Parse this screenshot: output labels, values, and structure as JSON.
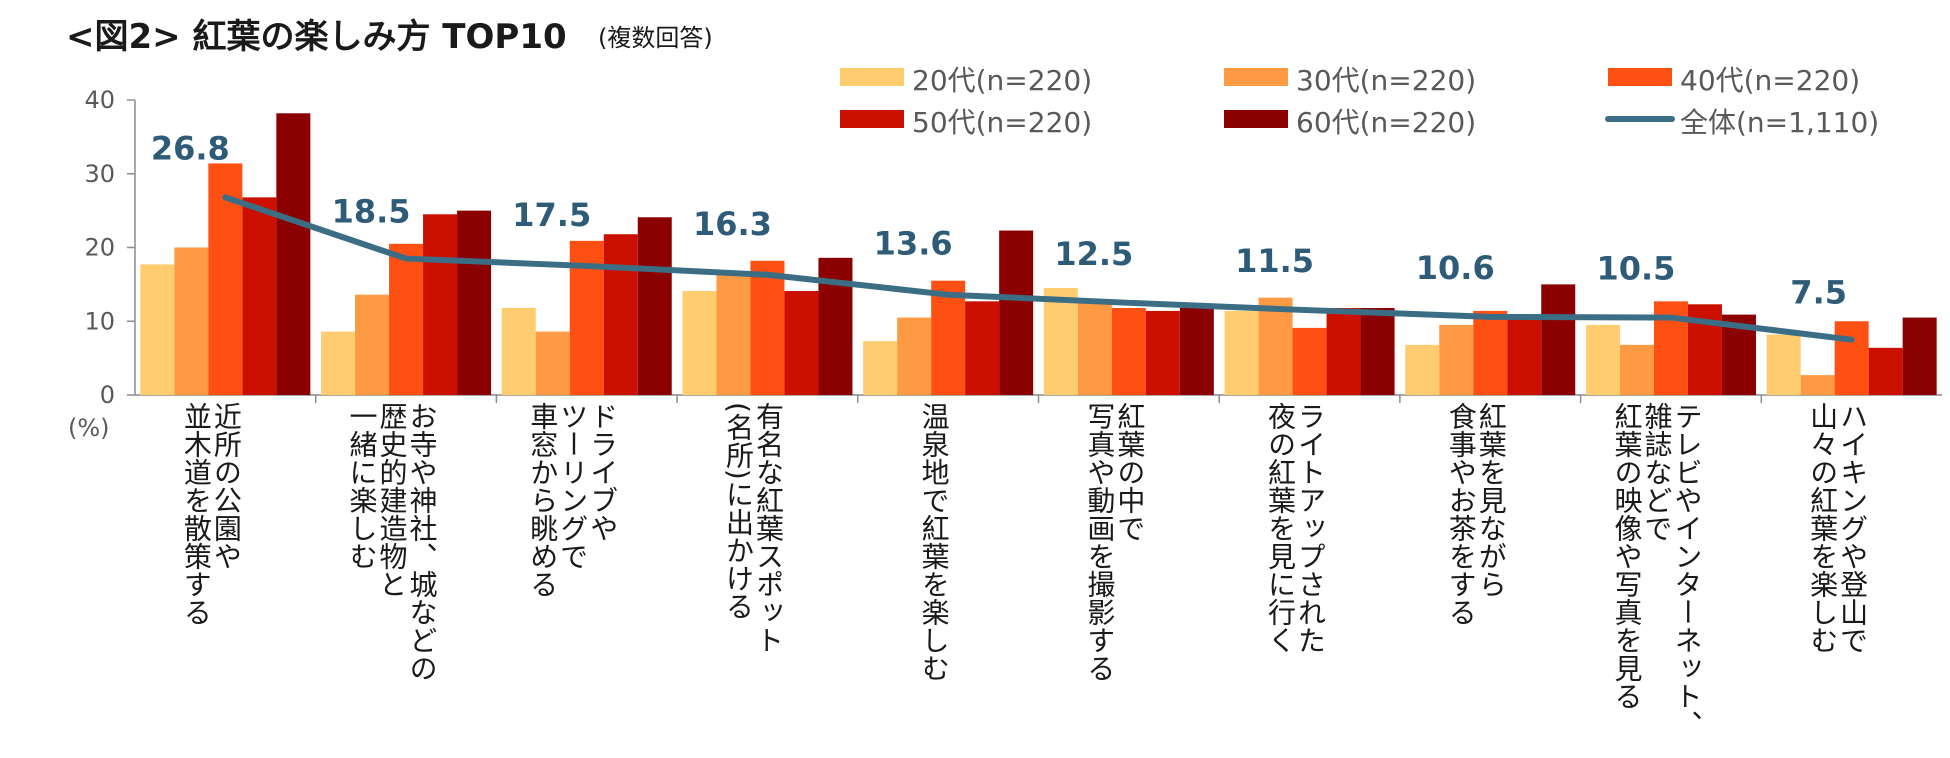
{
  "chart_data": {
    "type": "bar",
    "title": "<図2> 紅葉の楽しみ方 TOP10",
    "subtitle": "(複数回答)",
    "ylabel": "(%)",
    "ylim": [
      0,
      40
    ],
    "yticks": [
      "0",
      "10",
      "20",
      "30",
      "40"
    ],
    "legend_position": "top-right",
    "categories": [
      [
        "近所の公園や",
        "並木道を散策する"
      ],
      [
        "お寺や神社、城などの",
        "歴史的建造物と",
        "一緒に楽しむ"
      ],
      [
        "ドライブや",
        "ツーリングで",
        "車窓から眺める"
      ],
      [
        "有名な紅葉スポット",
        "(名所)に出かける"
      ],
      [
        "温泉地で紅葉を楽しむ"
      ],
      [
        "紅葉の中で",
        "写真や動画を撮影する"
      ],
      [
        "ライトアップされた",
        "夜の紅葉を見に行く"
      ],
      [
        "紅葉を見ながら",
        "食事やお茶をする"
      ],
      [
        "テレビやインターネット、",
        "雑誌などで",
        "紅葉の映像や写真を見る"
      ],
      [
        "ハイキングや登山で",
        "山々の紅葉を楽しむ"
      ]
    ],
    "series": [
      {
        "name": "20代(n=220)",
        "color": "#ffcc70",
        "values": [
          17.7,
          8.6,
          11.8,
          14.1,
          7.3,
          14.5,
          11.4,
          6.8,
          9.5,
          8.2
        ]
      },
      {
        "name": "30代(n=220)",
        "color": "#ff9a44",
        "values": [
          20.0,
          13.6,
          8.6,
          16.4,
          10.5,
          12.7,
          13.2,
          9.5,
          6.8,
          2.7
        ]
      },
      {
        "name": "40代(n=220)",
        "color": "#ff5014",
        "values": [
          31.4,
          20.5,
          20.9,
          18.2,
          15.5,
          11.8,
          9.1,
          11.4,
          12.7,
          10.0
        ]
      },
      {
        "name": "50代(n=220)",
        "color": "#cc1000",
        "values": [
          26.8,
          24.5,
          21.8,
          14.1,
          12.7,
          11.4,
          11.8,
          10.5,
          12.3,
          6.4
        ]
      },
      {
        "name": "60代(n=220)",
        "color": "#8b0000",
        "values": [
          38.2,
          25.0,
          24.1,
          18.6,
          22.3,
          11.8,
          11.8,
          15.0,
          10.9,
          10.5
        ]
      }
    ],
    "line": {
      "name": "全体(n=1,110)",
      "color": "#3b6d85",
      "values": [
        26.8,
        18.5,
        17.5,
        16.3,
        13.6,
        12.5,
        11.5,
        10.6,
        10.5,
        7.5
      ],
      "labels": [
        "26.8",
        "18.5",
        "17.5",
        "16.3",
        "13.6",
        "12.5",
        "11.5",
        "10.6",
        "10.5",
        "7.5"
      ]
    }
  }
}
